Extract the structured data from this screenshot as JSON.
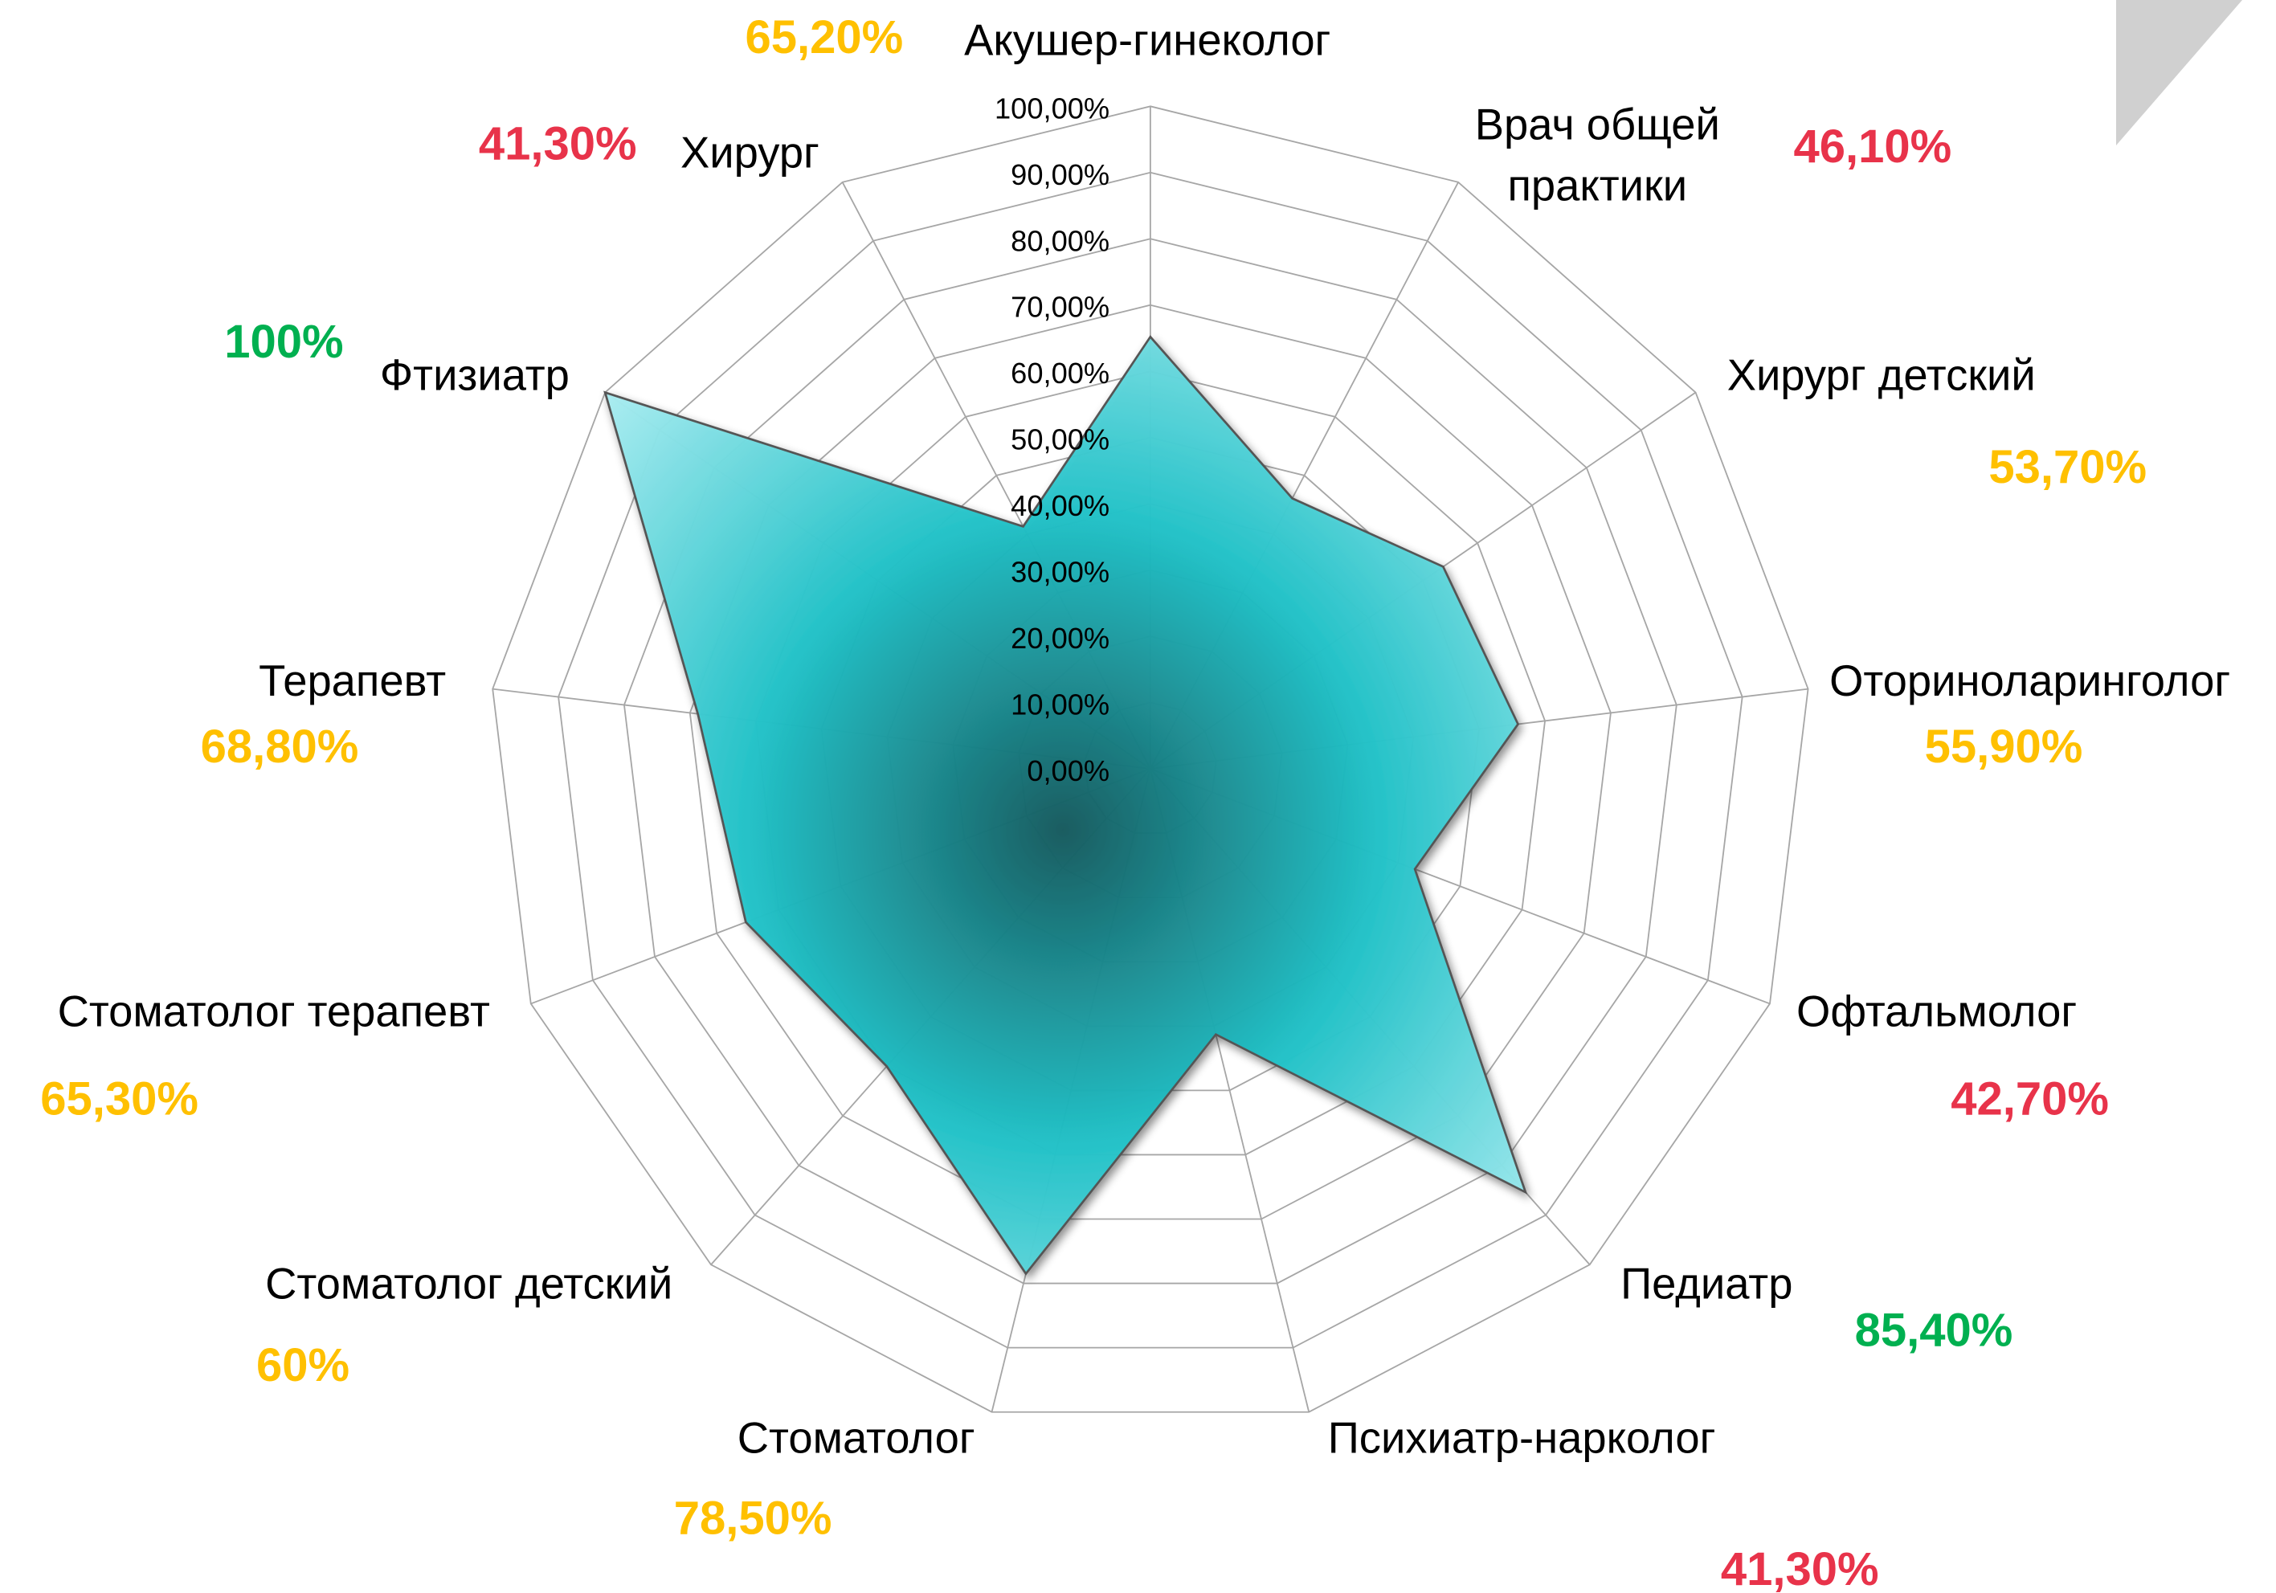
{
  "chart_data": {
    "type": "radar",
    "categories": [
      "Акушер-гинеколог",
      "Врач общей практики",
      "Хирург детский",
      "Оториноларинголог",
      "Офтальмолог",
      "Педиатр",
      "Психиатр-нарколог",
      "Стоматолог",
      "Стоматолог детский",
      "Стоматолог терапевт",
      "Терапевт",
      "Фтизиатр",
      "Хирург"
    ],
    "values": [
      65.2,
      46.1,
      53.7,
      55.9,
      42.7,
      85.4,
      41.3,
      78.5,
      60,
      65.3,
      68.8,
      100,
      41.3
    ],
    "value_labels": [
      "65,20%",
      "46,10%",
      "53,70%",
      "55,90%",
      "42,70%",
      "85,40%",
      "41,30%",
      "78,50%",
      "60%",
      "65,30%",
      "68,80%",
      "100%",
      "41,30%"
    ],
    "value_label_colors": [
      "#ffc000",
      "#e8334a",
      "#ffc000",
      "#ffc000",
      "#e8334a",
      "#00b050",
      "#e8334a",
      "#ffc000",
      "#ffc000",
      "#ffc000",
      "#ffc000",
      "#00b050",
      "#e8334a"
    ],
    "ylim": [
      0,
      100
    ],
    "yticks": [
      {
        "value": 0,
        "label": "0,00%"
      },
      {
        "value": 10,
        "label": "10,00%"
      },
      {
        "value": 20,
        "label": "20,00%"
      },
      {
        "value": 30,
        "label": "30,00%"
      },
      {
        "value": 40,
        "label": "40,00%"
      },
      {
        "value": 50,
        "label": "50,00%"
      },
      {
        "value": 60,
        "label": "60,00%"
      },
      {
        "value": 70,
        "label": "70,00%"
      },
      {
        "value": 80,
        "label": "80,00%"
      },
      {
        "value": 90,
        "label": "90,00%"
      },
      {
        "value": 100,
        "label": "100,00%"
      }
    ],
    "grid": true
  }
}
